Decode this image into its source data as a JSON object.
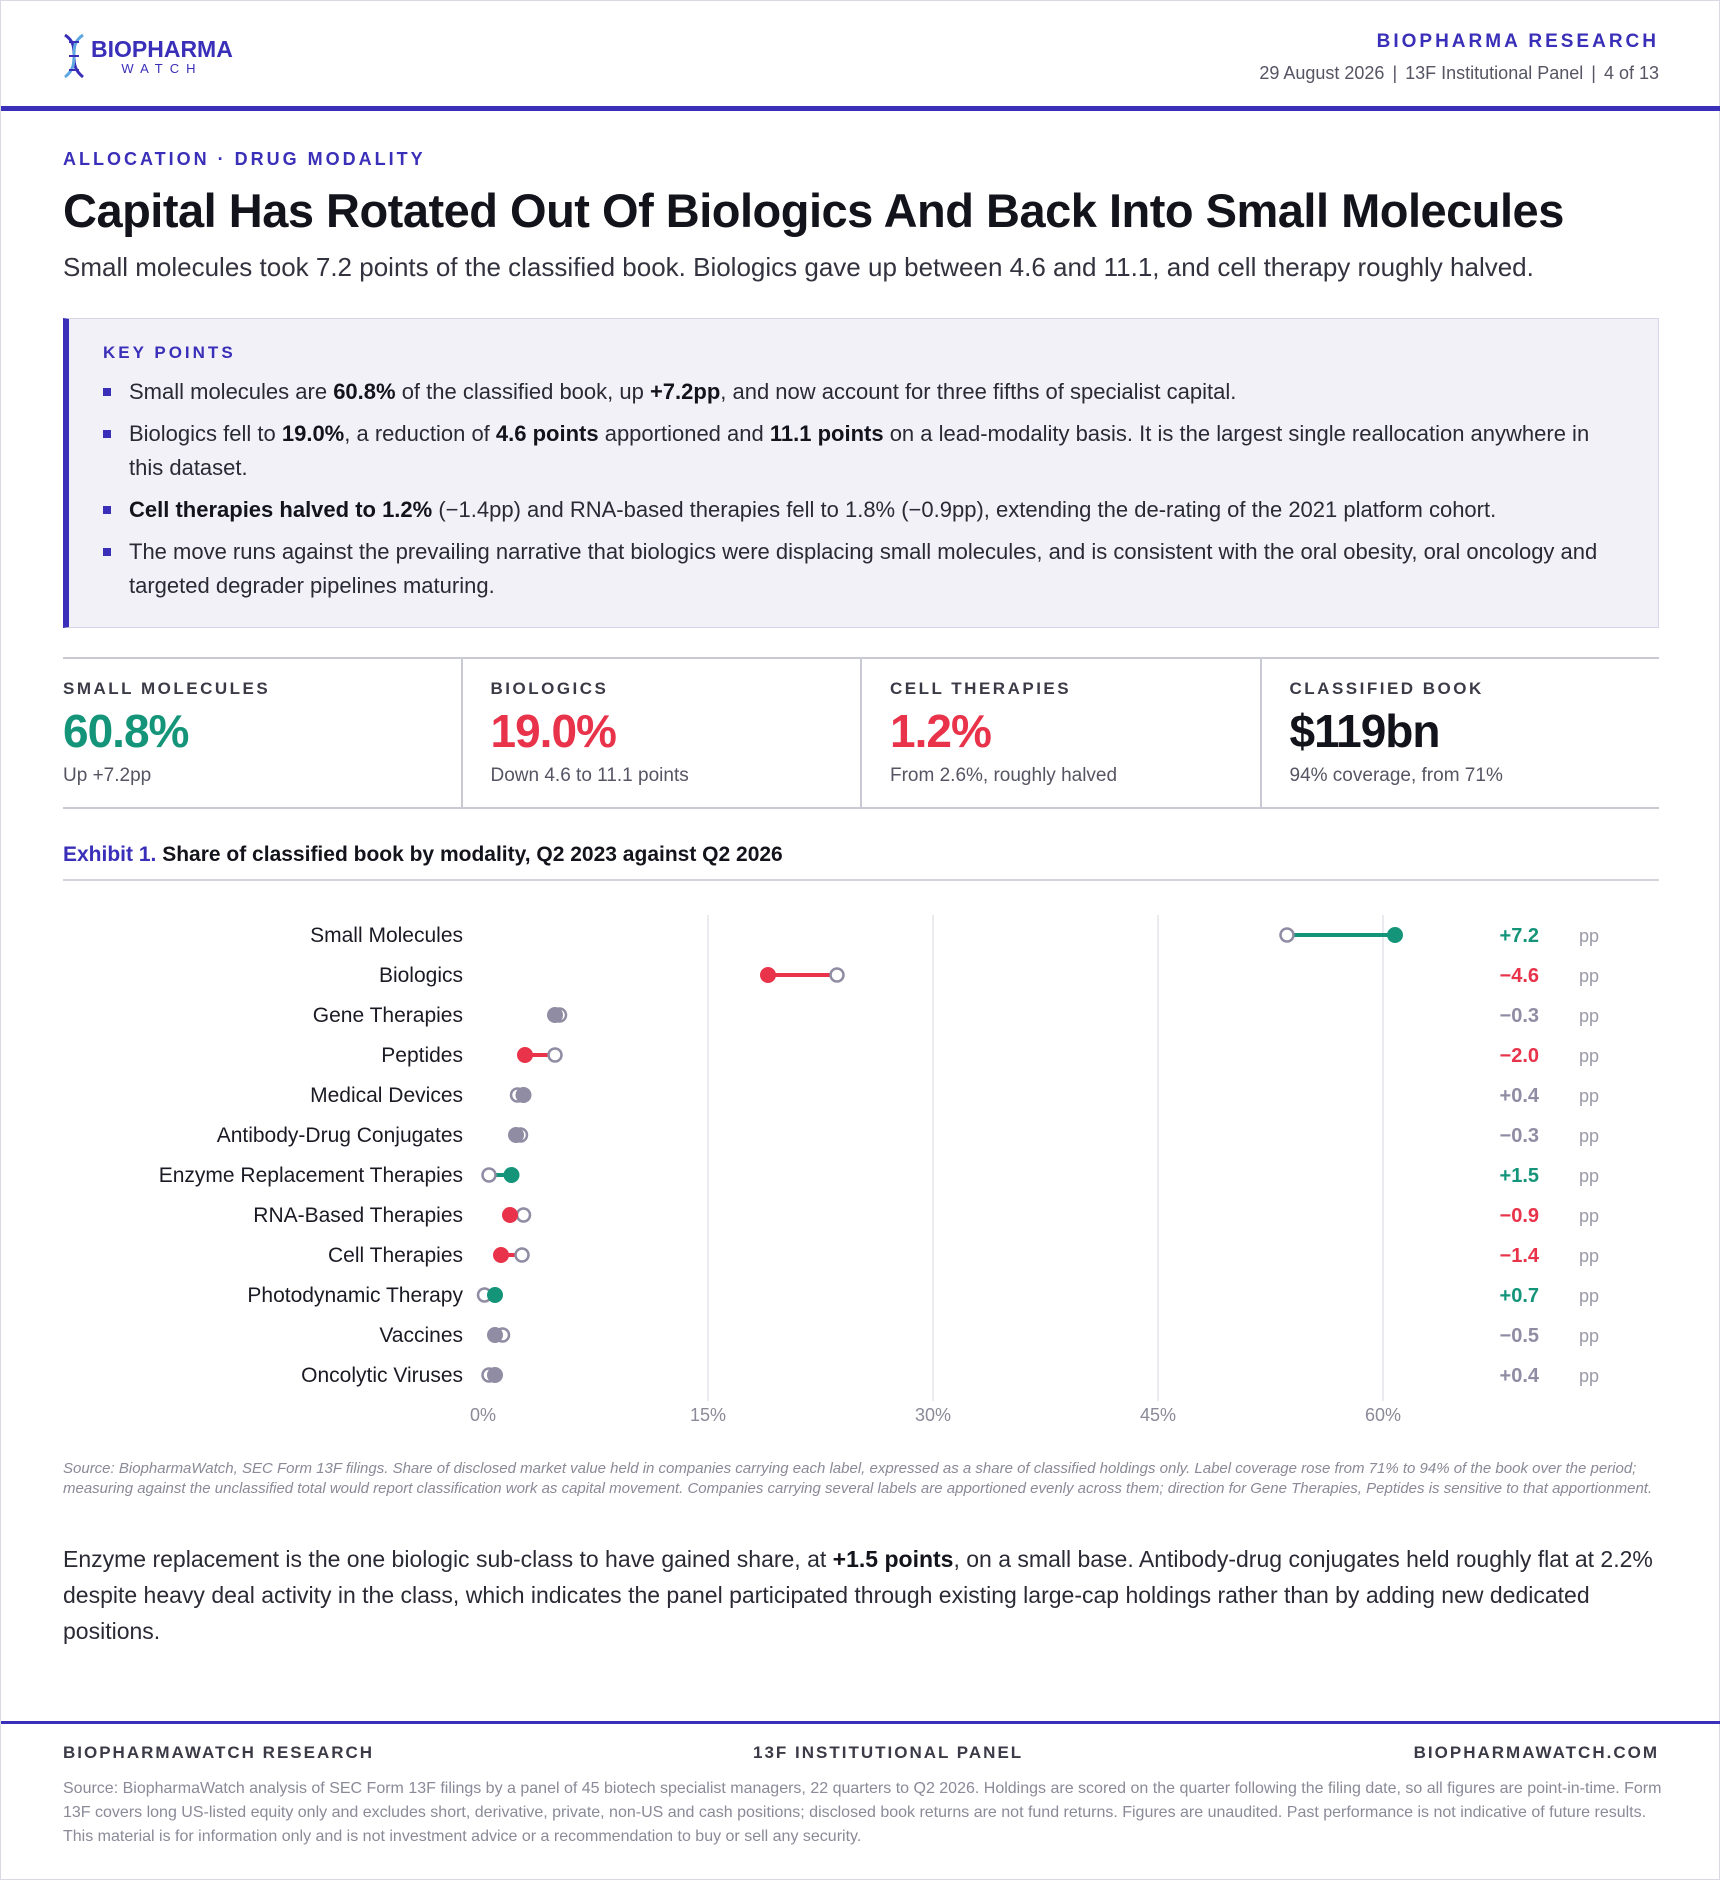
{
  "header": {
    "logo_main": "BIOPHARMA",
    "logo_sub": "WATCH",
    "brand": "BIOPHARMA RESEARCH",
    "date": "29 August 2026",
    "panel": "13F Institutional Panel",
    "page": "4 of 13"
  },
  "kicker": "ALLOCATION · DRUG MODALITY",
  "title": "Capital Has Rotated Out Of Biologics And Back Into Small Molecules",
  "subtitle": "Small molecules took 7.2 points of the classified book. Biologics gave up between 4.6 and 11.1, and cell therapy roughly halved.",
  "key_points": {
    "label": "KEY POINTS",
    "items": [
      [
        {
          "t": "Small molecules are "
        },
        {
          "t": "60.8%",
          "b": true
        },
        {
          "t": " of the classified book, up "
        },
        {
          "t": "+7.2pp",
          "b": true
        },
        {
          "t": ", and now account for three fifths of specialist capital."
        }
      ],
      [
        {
          "t": "Biologics fell to "
        },
        {
          "t": "19.0%",
          "b": true
        },
        {
          "t": ", a reduction of "
        },
        {
          "t": "4.6 points",
          "b": true
        },
        {
          "t": " apportioned and "
        },
        {
          "t": "11.1 points",
          "b": true
        },
        {
          "t": " on a lead-modality basis. It is the largest single reallocation anywhere in this dataset."
        }
      ],
      [
        {
          "t": "Cell therapies halved to 1.2%",
          "b": true
        },
        {
          "t": " (−1.4pp) and RNA-based therapies fell to 1.8% (−0.9pp), extending the de-rating of the 2021 platform cohort."
        }
      ],
      [
        {
          "t": "The move runs against the prevailing narrative that biologics were displacing small molecules, and is consistent with the oral obesity, oral oncology and targeted degrader pipelines maturing."
        }
      ]
    ]
  },
  "kpis": [
    {
      "label": "SMALL MOLECULES",
      "value": "60.8%",
      "note": "Up +7.2pp",
      "color": "#14957a"
    },
    {
      "label": "BIOLOGICS",
      "value": "19.0%",
      "note": "Down 4.6 to 11.1 points",
      "color": "#e8334a"
    },
    {
      "label": "CELL THERAPIES",
      "value": "1.2%",
      "note": "From 2.6%, roughly halved",
      "color": "#e8334a"
    },
    {
      "label": "CLASSIFIED BOOK",
      "value": "$119bn",
      "note": "94% coverage, from 71%",
      "color": "#13131c"
    }
  ],
  "exhibit": {
    "number": "Exhibit 1.",
    "title": "Share of classified book by modality, Q2 2023 against Q2 2026"
  },
  "chart_data": {
    "type": "dumbbell",
    "categories": [
      "Small Molecules",
      "Biologics",
      "Gene Therapies",
      "Peptides",
      "Medical Devices",
      "Antibody-Drug Conjugates",
      "Enzyme Replacement Therapies",
      "RNA-Based Therapies",
      "Cell Therapies",
      "Photodynamic Therapy",
      "Vaccines",
      "Oncolytic Viruses"
    ],
    "series": [
      {
        "values": [
          53.6,
          23.6,
          5.1,
          4.8,
          2.3,
          2.5,
          0.4,
          2.7,
          2.6,
          0.1,
          1.3,
          0.4
        ]
      },
      {
        "values": [
          60.8,
          19.0,
          4.8,
          2.8,
          2.7,
          2.2,
          1.9,
          1.8,
          1.2,
          0.8,
          0.8,
          0.8
        ]
      }
    ],
    "change_labels": [
      "+7.2",
      "−4.6",
      "−0.3",
      "−2.0",
      "+0.4",
      "−0.3",
      "+1.5",
      "−0.9",
      "−1.4",
      "+0.7",
      "−0.5",
      "+0.4"
    ],
    "change_direction": [
      "up",
      "down",
      "flat",
      "down",
      "flat",
      "flat",
      "up",
      "down",
      "down",
      "up",
      "flat",
      "flat"
    ],
    "unit_label": "pp",
    "xticks": [
      "0%",
      "15%",
      "30%",
      "45%",
      "60%"
    ],
    "xtick_values": [
      0,
      15,
      30,
      45,
      60
    ],
    "xlim": [
      0,
      70
    ],
    "colors": {
      "up": "#14957a",
      "down": "#e8334a",
      "flat": "#8f8ca3",
      "open": "#8f8ca3"
    },
    "grid": true
  },
  "chart_source": "Source: BiopharmaWatch, SEC Form 13F filings. Share of disclosed market value held in companies carrying each label, expressed as a share of classified holdings only. Label coverage rose from 71% to 94% of the book over the period; measuring against the unclassified total would report classification work as capital movement. Companies carrying several labels are apportioned evenly across them; direction for Gene Therapies, Peptides is sensitive to that apportionment.",
  "body": [
    {
      "t": "Enzyme replacement is the one biologic sub-class to have gained share, at "
    },
    {
      "t": "+1.5 points",
      "b": true
    },
    {
      "t": ", on a small base. Antibody-drug conjugates held roughly flat at 2.2% despite heavy deal activity in the class, which indicates the panel participated through existing large-cap holdings rather than by adding new dedicated positions."
    }
  ],
  "footer": {
    "left": "BIOPHARMAWATCH RESEARCH",
    "center": "13F INSTITUTIONAL PANEL",
    "right": "BIOPHARMAWATCH.COM",
    "note": "Source: BiopharmaWatch analysis of SEC Form 13F filings by a panel of 45 biotech specialist managers, 22 quarters to Q2 2026. Holdings are scored on the quarter following the filing date, so all figures are point-in-time. Form 13F covers long US-listed equity only and excludes short, derivative, private, non-US and cash positions; disclosed book returns are not fund returns. Figures are unaudited. Past performance is not indicative of future results. This material is for information only and is not investment advice or a recommendation to buy or sell any security."
  }
}
